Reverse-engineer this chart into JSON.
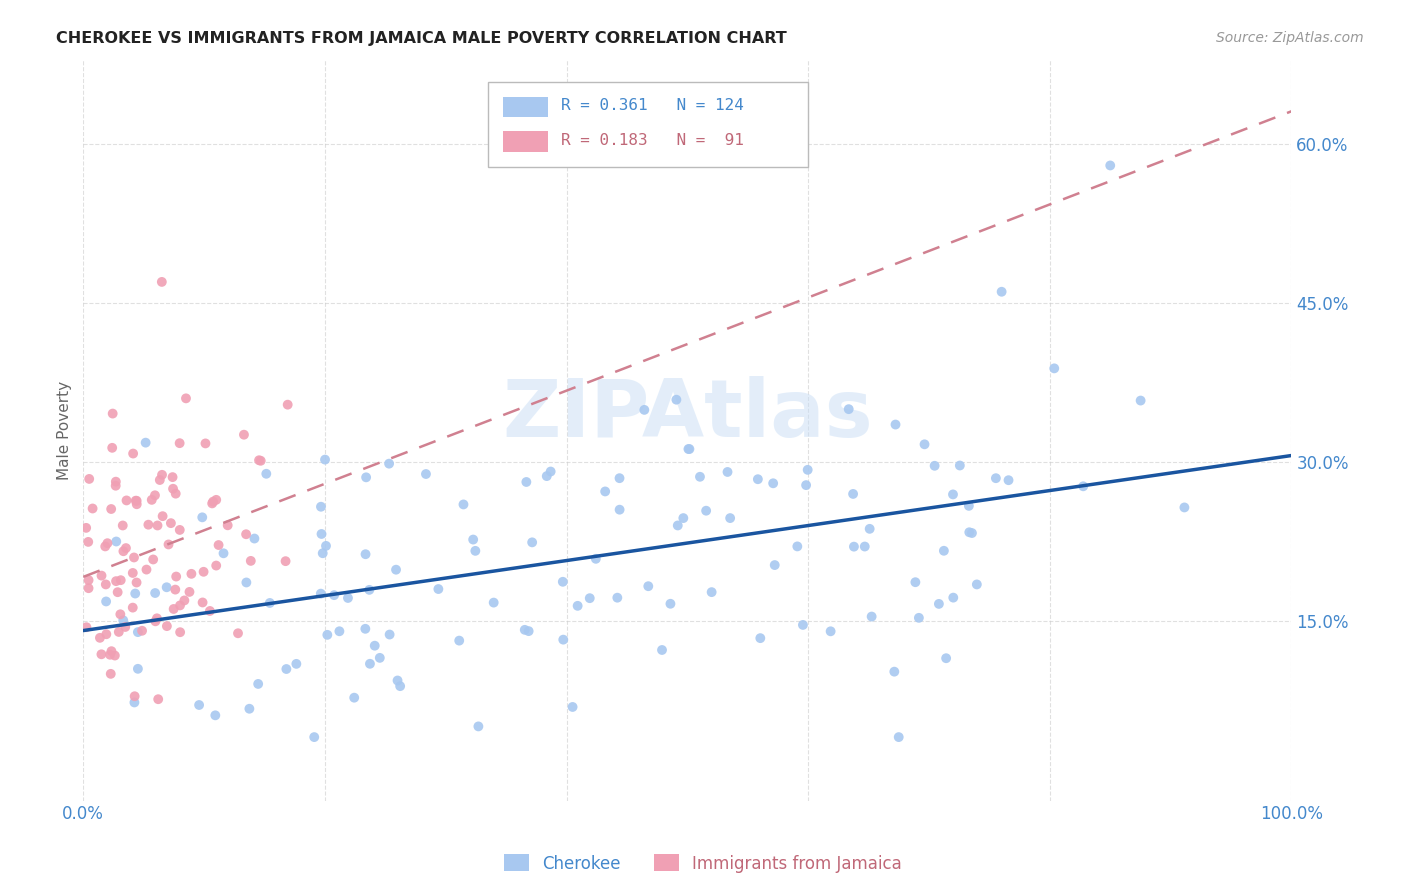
{
  "title": "CHEROKEE VS IMMIGRANTS FROM JAMAICA MALE POVERTY CORRELATION CHART",
  "source": "Source: ZipAtlas.com",
  "ylabel": "Male Poverty",
  "xlim": [
    0.0,
    1.0
  ],
  "ylim": [
    -0.02,
    0.68
  ],
  "xticks": [
    0.0,
    0.2,
    0.4,
    0.6,
    0.8,
    1.0
  ],
  "xticklabels": [
    "0.0%",
    "",
    "",
    "",
    "",
    "100.0%"
  ],
  "yticks": [
    0.15,
    0.3,
    0.45,
    0.6
  ],
  "yticklabels": [
    "15.0%",
    "30.0%",
    "45.0%",
    "60.0%"
  ],
  "cherokee_color": "#a8c8f0",
  "jamaica_color": "#f0a0b4",
  "cherokee_line_color": "#1a55a0",
  "jamaica_line_color": "#d08090",
  "cherokee_R": 0.361,
  "cherokee_N": 124,
  "jamaica_R": 0.183,
  "jamaica_N": 91,
  "background_color": "#ffffff",
  "grid_color": "#cccccc",
  "title_color": "#222222",
  "axis_label_color": "#4488cc",
  "ylabel_color": "#666666",
  "watermark_color": "#c8ddf5",
  "source_color": "#999999"
}
